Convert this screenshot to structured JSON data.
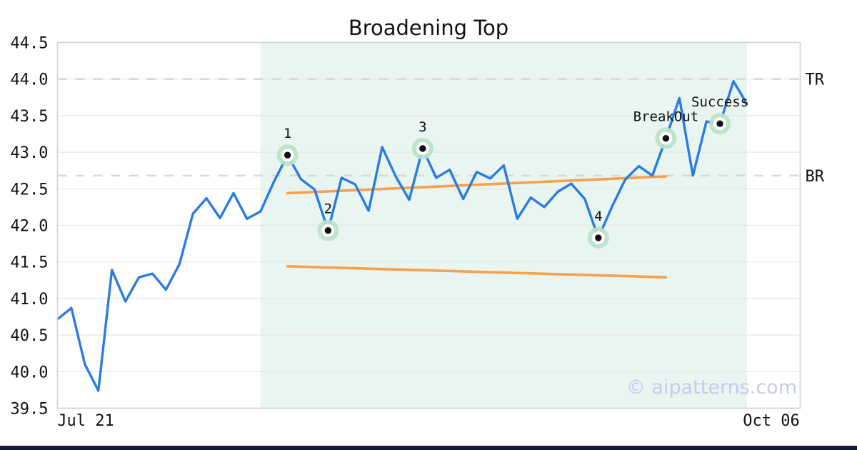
{
  "title": "Broadening Top",
  "watermark": "© aipatterns.com",
  "axes": {
    "y_ticks": [
      "44.5",
      "44.0",
      "43.5",
      "43.0",
      "42.5",
      "42.0",
      "41.5",
      "41.0",
      "40.5",
      "40.0",
      "39.5"
    ],
    "x_ticks": [
      "Jul 21",
      "Oct 06"
    ]
  },
  "colors": {
    "price_line": "#2b7ce0",
    "trendline": "#f7a14e",
    "marker_halo": "#b9e2c9",
    "marker_ring": "#ffffff",
    "marker_dot": "#111111",
    "pattern_shade": "#e9f5f0",
    "grid": "#e7e7e7",
    "dashed_level": "#d8d8d8",
    "plot_border": "#d5d5d5",
    "watermark_color": "#c6c8ee",
    "bottom_bar": "#101c3a",
    "text": "#111111"
  },
  "chart_data": {
    "type": "line",
    "title": "Broadening Top",
    "xlabel": "",
    "ylabel": "",
    "ylim": [
      39.5,
      44.5
    ],
    "x_axis": {
      "start_label": "Jul 21",
      "end_label": "Oct 06"
    },
    "grid": true,
    "legend": "none",
    "values": [
      40.72,
      40.87,
      40.1,
      39.74,
      41.39,
      40.96,
      41.29,
      41.34,
      41.12,
      41.47,
      42.16,
      42.37,
      42.1,
      42.44,
      42.09,
      42.19,
      42.6,
      42.96,
      42.63,
      42.49,
      41.93,
      42.65,
      42.56,
      42.2,
      43.07,
      42.67,
      42.35,
      43.05,
      42.65,
      42.76,
      42.36,
      42.73,
      42.64,
      42.82,
      42.09,
      42.38,
      42.25,
      42.46,
      42.57,
      42.36,
      41.83,
      42.25,
      42.63,
      42.81,
      42.68,
      43.19,
      43.74,
      42.68,
      43.42,
      43.39,
      43.97,
      43.66
    ],
    "annotations": [
      {
        "label": "1",
        "index": 17,
        "value": 42.96
      },
      {
        "label": "2",
        "index": 20,
        "value": 41.93
      },
      {
        "label": "3",
        "index": 27,
        "value": 43.05
      },
      {
        "label": "4",
        "index": 40,
        "value": 41.83
      },
      {
        "label": "BreakOut",
        "index": 45,
        "value": 43.19
      },
      {
        "label": "Success",
        "index": 49,
        "value": 43.39
      }
    ],
    "trendlines": [
      {
        "name": "upper-broadening-line",
        "from_index": 17,
        "from_value": 42.44,
        "to_index": 45,
        "to_value": 42.67
      },
      {
        "name": "lower-broadening-line",
        "from_index": 17,
        "from_value": 41.44,
        "to_index": 45,
        "to_value": 41.29
      }
    ],
    "levels": [
      {
        "label": "TR",
        "value": 44.0
      },
      {
        "label": "BR",
        "value": 42.68
      }
    ],
    "shaded_region": {
      "from_index": 15,
      "to_index": 51
    }
  }
}
